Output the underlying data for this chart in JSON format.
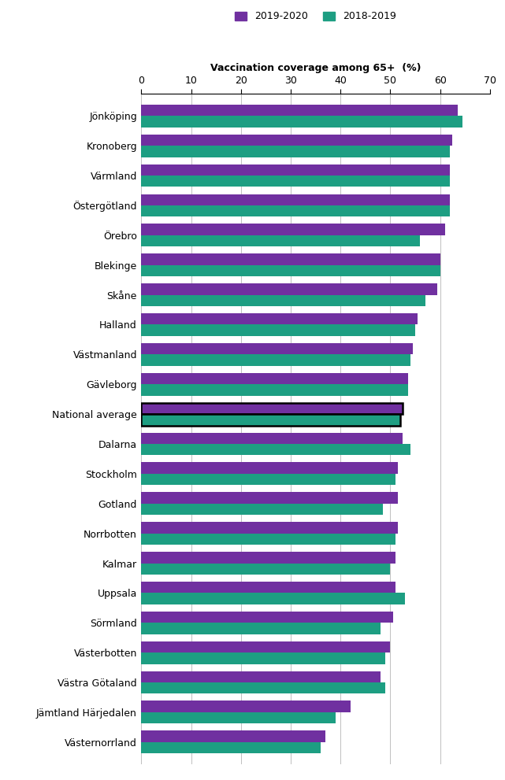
{
  "counties": [
    "Jönköping",
    "Kronoberg",
    "Värmland",
    "Östergötland",
    "Örebro",
    "Blekinge",
    "Skåne",
    "Halland",
    "Västmanland",
    "Gävleborg",
    "National average",
    "Dalarna",
    "Stockholm",
    "Gotland",
    "Norrbotten",
    "Kalmar",
    "Uppsala",
    "Sörmland",
    "Västerbotten",
    "Västra Götaland",
    "Jämtland Härjedalen",
    "Västernorrland"
  ],
  "values_2019_2020": [
    63.5,
    62.5,
    62.0,
    62.0,
    61.0,
    60.0,
    59.5,
    55.5,
    54.5,
    53.5,
    52.5,
    52.5,
    51.5,
    51.5,
    51.5,
    51.0,
    51.0,
    50.5,
    50.0,
    48.0,
    42.0,
    37.0
  ],
  "values_2018_2019": [
    64.5,
    62.0,
    62.0,
    62.0,
    56.0,
    60.0,
    57.0,
    55.0,
    54.0,
    53.5,
    52.0,
    54.0,
    51.0,
    48.5,
    51.0,
    50.0,
    53.0,
    48.0,
    49.0,
    49.0,
    39.0,
    36.0
  ],
  "color_2019_2020": "#7030A0",
  "color_2018_2019": "#1D9E82",
  "national_avg_edgecolor": "#000000",
  "xlabel": "Vaccination coverage among 65+  (%)",
  "xlim": [
    0,
    70
  ],
  "xticks": [
    0,
    10,
    20,
    30,
    40,
    50,
    60,
    70
  ],
  "legend_labels": [
    "2019-2020",
    "2018-2019"
  ],
  "bar_height": 0.38,
  "fontsize": 9
}
